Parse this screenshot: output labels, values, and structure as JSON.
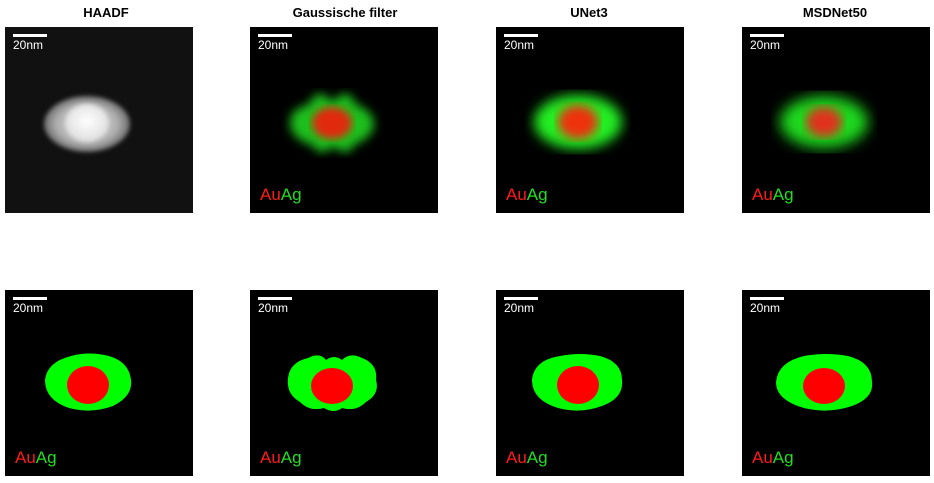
{
  "columns": [
    {
      "title": "HAADF"
    },
    {
      "title": "Gaussische filter"
    },
    {
      "title": "UNet3"
    },
    {
      "title": "MSDNet50"
    }
  ],
  "scalebar": {
    "label": "20nm"
  },
  "legend": {
    "au": "Au",
    "ag": "Ag"
  },
  "colors": {
    "au": "#ff0000",
    "ag": "#00ff00",
    "background": "#000000"
  }
}
